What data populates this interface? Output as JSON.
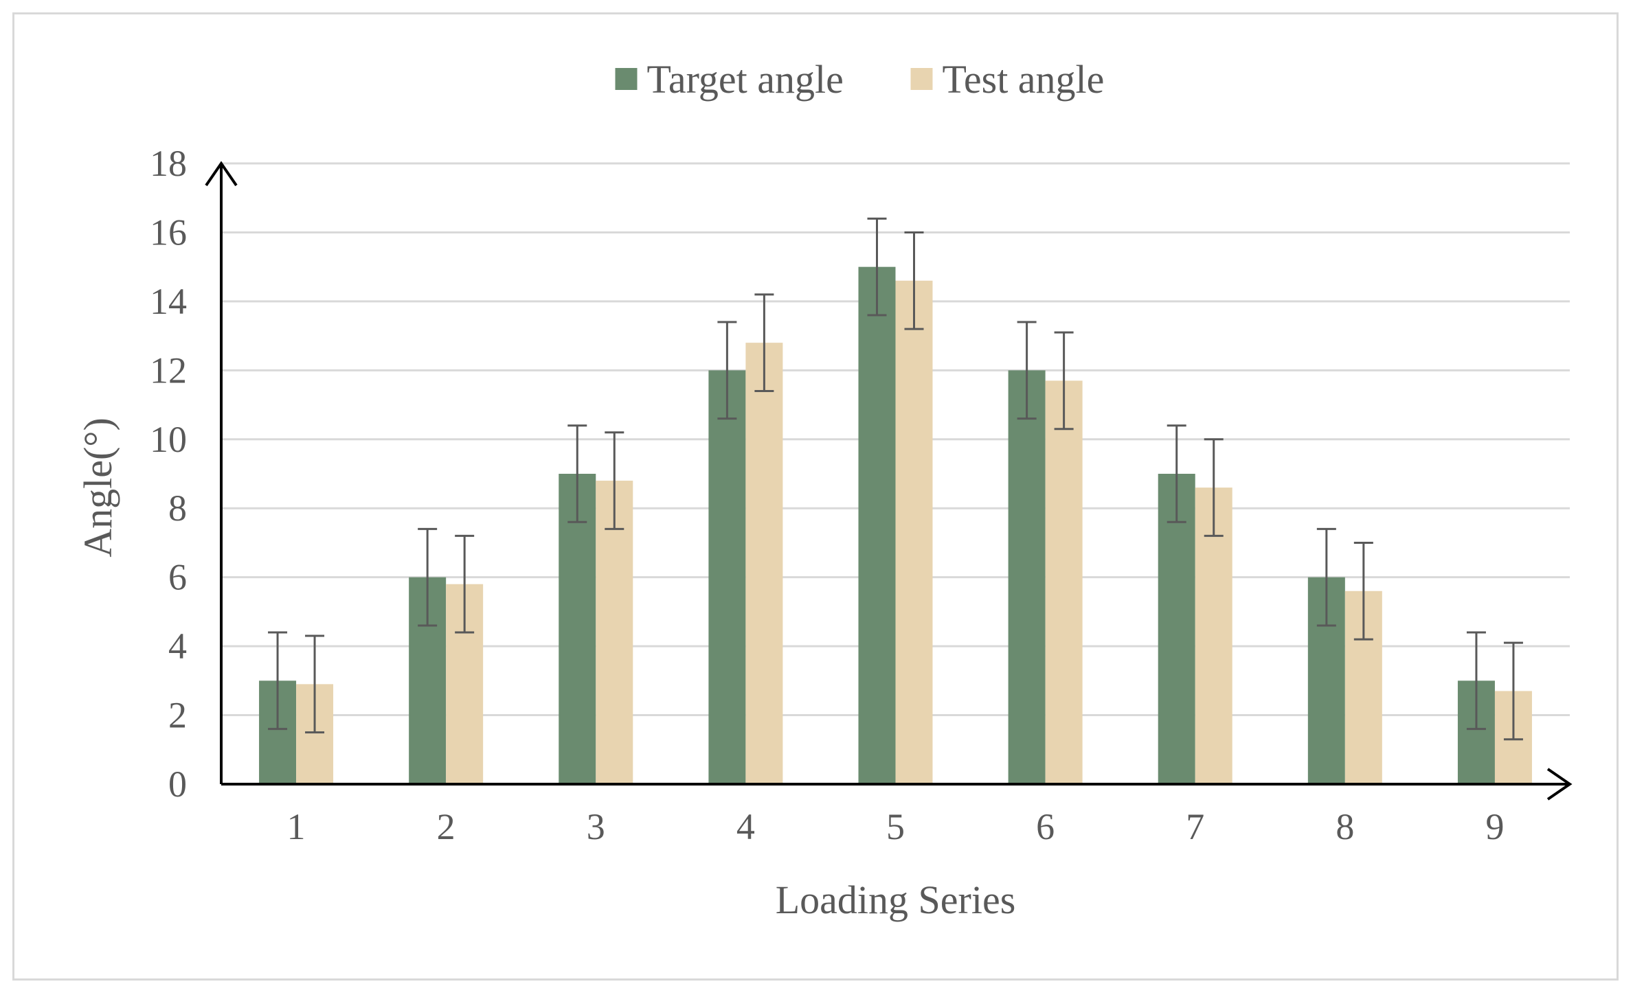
{
  "chart_data": {
    "type": "bar",
    "title": "",
    "xlabel": "Loading Series",
    "ylabel": "Angle(°)",
    "ylim": [
      0,
      18
    ],
    "yticks": [
      0,
      2,
      4,
      6,
      8,
      10,
      12,
      14,
      16,
      18
    ],
    "grid": true,
    "legend_position": "top-center",
    "categories": [
      "1",
      "2",
      "3",
      "4",
      "5",
      "6",
      "7",
      "8",
      "9"
    ],
    "series": [
      {
        "name": "Target angle",
        "color": "#6a8b6f",
        "values": [
          3,
          6,
          9,
          12,
          15,
          12,
          9,
          6,
          3
        ],
        "error": [
          1.4,
          1.4,
          1.4,
          1.4,
          1.4,
          1.4,
          1.4,
          1.4,
          1.4
        ]
      },
      {
        "name": "Test angle",
        "color": "#e8d4b0",
        "values": [
          2.9,
          5.8,
          8.8,
          12.8,
          14.6,
          11.7,
          8.6,
          5.6,
          2.7
        ],
        "error": [
          1.4,
          1.4,
          1.4,
          1.4,
          1.4,
          1.4,
          1.4,
          1.4,
          1.4
        ]
      }
    ]
  }
}
